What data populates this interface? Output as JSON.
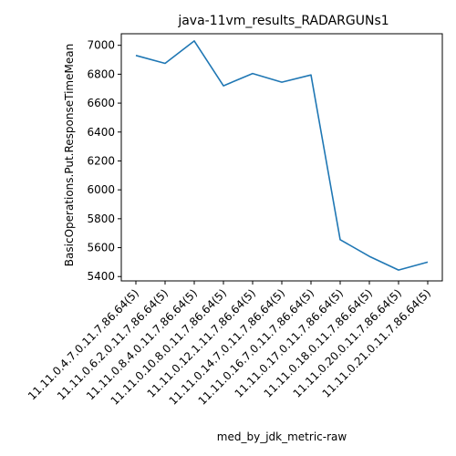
{
  "chart_data": {
    "type": "line",
    "title": "java-11vm_results_RADARGUNs1",
    "xlabel": "med_by_jdk_metric-raw",
    "ylabel": "BasicOperations.Put.ResponseTimeMean",
    "categories": [
      "11.11.0.4.7.0.11.7.86.64(5)",
      "11.11.0.6.2.0.11.7.86.64(5)",
      "11.11.0.8.4.0.11.7.86.64(5)",
      "11.11.0.10.8.0.11.7.86.64(5)",
      "11.11.0.12.1.11.7.86.64(5)",
      "11.11.0.14.7.0.11.7.86.64(5)",
      "11.11.0.16.7.0.11.7.86.64(5)",
      "11.11.0.17.0.11.7.86.64(5)",
      "11.11.0.18.0.11.7.86.64(5)",
      "11.11.0.20.0.11.7.86.64(5)",
      "11.11.0.21.0.11.7.86.64(5)"
    ],
    "series": [
      {
        "values": [
          6930,
          6875,
          7030,
          6720,
          6805,
          6745,
          6795,
          5655,
          5540,
          5445,
          5500
        ]
      }
    ],
    "ylim": [
      5370,
      7080
    ],
    "yticks": [
      5400,
      5600,
      5800,
      6000,
      6200,
      6400,
      6600,
      6800,
      7000
    ],
    "grid": false,
    "colors": {
      "line": "#1f77b4",
      "axis": "#000000"
    }
  }
}
